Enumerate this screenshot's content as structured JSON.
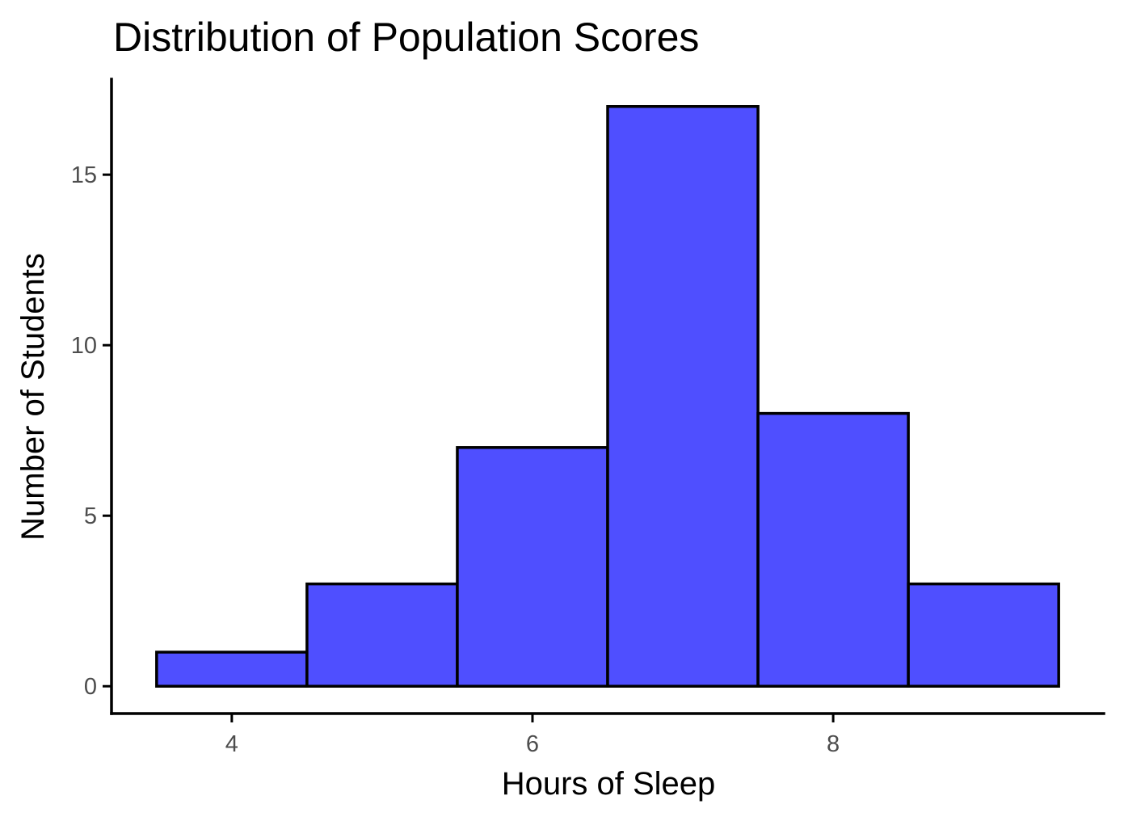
{
  "chart_data": {
    "type": "bar",
    "subtype": "histogram",
    "title": "Distribution of Population Scores",
    "xlabel": "Hours of Sleep",
    "ylabel": "Number of Students",
    "bins": [
      {
        "x_start": 3.5,
        "x_end": 4.5,
        "center": 4,
        "count": 1
      },
      {
        "x_start": 4.5,
        "x_end": 5.5,
        "center": 5,
        "count": 3
      },
      {
        "x_start": 5.5,
        "x_end": 6.5,
        "center": 6,
        "count": 7
      },
      {
        "x_start": 6.5,
        "x_end": 7.5,
        "center": 7,
        "count": 17
      },
      {
        "x_start": 7.5,
        "x_end": 8.5,
        "center": 8,
        "count": 8
      },
      {
        "x_start": 8.5,
        "x_end": 9.5,
        "center": 9,
        "count": 3
      }
    ],
    "xlim": [
      3.2,
      9.8
    ],
    "ylim": [
      -0.8,
      17.8
    ],
    "x_ticks": [
      4,
      6,
      8
    ],
    "x_tick_labels": [
      "4",
      "6",
      "8"
    ],
    "y_ticks": [
      0,
      5,
      10,
      15
    ],
    "y_tick_labels": [
      "0",
      "5",
      "10",
      "15"
    ],
    "grid": false,
    "legend": "none",
    "colors": {
      "bar_fill": "#4f4fff",
      "bar_stroke": "#000000",
      "axis": "#000000",
      "tick_label": "#4d4d4d"
    }
  }
}
